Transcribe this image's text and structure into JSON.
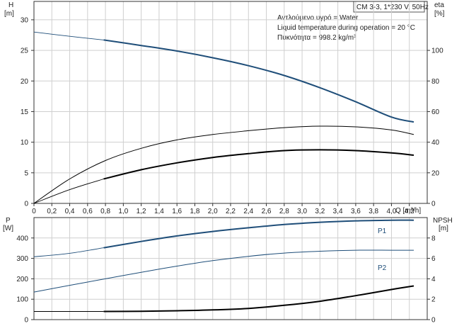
{
  "chart_data": [
    {
      "type": "line",
      "header": "CM 3-3, 1*230 V, 50Hz",
      "annotations": [
        "Αντλούμενο υγρό = Water",
        "Liquid temperature during operation = 20 °C",
        "Πυκνότητα = 998.2 kg/m³"
      ],
      "x_label": "Q [m³/h]",
      "y_left_label": [
        "H",
        "[m]"
      ],
      "y_right_label": [
        "eta",
        "[%]"
      ],
      "xlim": [
        0,
        4.4
      ],
      "ylim_left": [
        0,
        33
      ],
      "ylim_right": [
        0,
        132
      ],
      "x_ticks": [
        "0",
        "0,2",
        "0,4",
        "0,6",
        "0,8",
        "1,0",
        "1,2",
        "1,4",
        "1,6",
        "1,8",
        "2,0",
        "2,2",
        "2,4",
        "2,6",
        "2,8",
        "3,0",
        "3,2",
        "3,4",
        "3,6",
        "3,8",
        "4,0",
        "4,2"
      ],
      "y_left_ticks": [
        "0",
        "5",
        "10",
        "15",
        "20",
        "25",
        "30"
      ],
      "y_right_ticks": [
        "0",
        "20",
        "40",
        "60",
        "80",
        "100"
      ],
      "grid": true,
      "series": [
        {
          "axis": "left",
          "color": "#1f4e79",
          "x": [
            0,
            0.4,
            0.78,
            1.2,
            1.6,
            2.0,
            2.4,
            2.8,
            3.2,
            3.6,
            4.0,
            4.25
          ],
          "y": [
            28.0,
            27.3,
            26.7,
            25.8,
            24.9,
            23.8,
            22.5,
            20.9,
            18.9,
            16.6,
            14.1,
            13.3
          ],
          "solid_from": 0.78
        },
        {
          "axis": "right",
          "color": "#000000",
          "x": [
            0,
            0.4,
            0.8,
            1.2,
            1.6,
            2.0,
            2.4,
            2.8,
            3.2,
            3.6,
            4.0,
            4.25
          ],
          "y": [
            0,
            16,
            28,
            36,
            41.5,
            45,
            47.5,
            49.5,
            50.5,
            50,
            48,
            45
          ]
        },
        {
          "axis": "right",
          "color": "#000000",
          "x": [
            0,
            0.4,
            0.78,
            1.2,
            1.6,
            2.0,
            2.4,
            2.8,
            3.2,
            3.6,
            4.0,
            4.25
          ],
          "y": [
            0,
            9,
            16,
            22,
            26.5,
            30,
            32.5,
            34.5,
            35,
            34.5,
            33,
            31.5
          ],
          "solid_from": 0.78
        }
      ]
    },
    {
      "type": "line",
      "x_label": "",
      "y_left_label": [
        "P",
        "[W]"
      ],
      "y_right_label": [
        "NPSH",
        "[m]"
      ],
      "xlim": [
        0,
        4.4
      ],
      "ylim_left": [
        0,
        500
      ],
      "ylim_right": [
        0,
        10
      ],
      "y_left_ticks": [
        "0",
        "100",
        "200",
        "300",
        "400"
      ],
      "y_right_ticks": [
        "0",
        "2",
        "4",
        "6",
        "8"
      ],
      "grid": true,
      "series": [
        {
          "name": "P1",
          "axis": "left",
          "color": "#1f4e79",
          "x": [
            0,
            0.4,
            0.78,
            1.2,
            1.6,
            2.0,
            2.4,
            2.8,
            3.2,
            3.6,
            4.0,
            4.25
          ],
          "y": [
            308,
            325,
            352,
            383,
            410,
            432,
            450,
            466,
            477,
            484,
            487,
            487
          ],
          "solid_from": 0.78
        },
        {
          "name": "P2",
          "axis": "left",
          "color": "#1f4e79",
          "x": [
            0,
            0.4,
            0.8,
            1.2,
            1.6,
            2.0,
            2.4,
            2.8,
            3.2,
            3.6,
            4.0,
            4.25
          ],
          "y": [
            135,
            168,
            200,
            232,
            262,
            289,
            310,
            326,
            335,
            340,
            340,
            340
          ]
        },
        {
          "axis": "right",
          "color": "#000000",
          "x": [
            0,
            0.78,
            1.2,
            1.6,
            2.0,
            2.4,
            2.8,
            3.2,
            3.6,
            4.0,
            4.25
          ],
          "y": [
            0.8,
            0.8,
            0.82,
            0.87,
            0.95,
            1.1,
            1.4,
            1.8,
            2.35,
            2.95,
            3.3
          ],
          "solid_from": 0.78
        }
      ]
    }
  ]
}
